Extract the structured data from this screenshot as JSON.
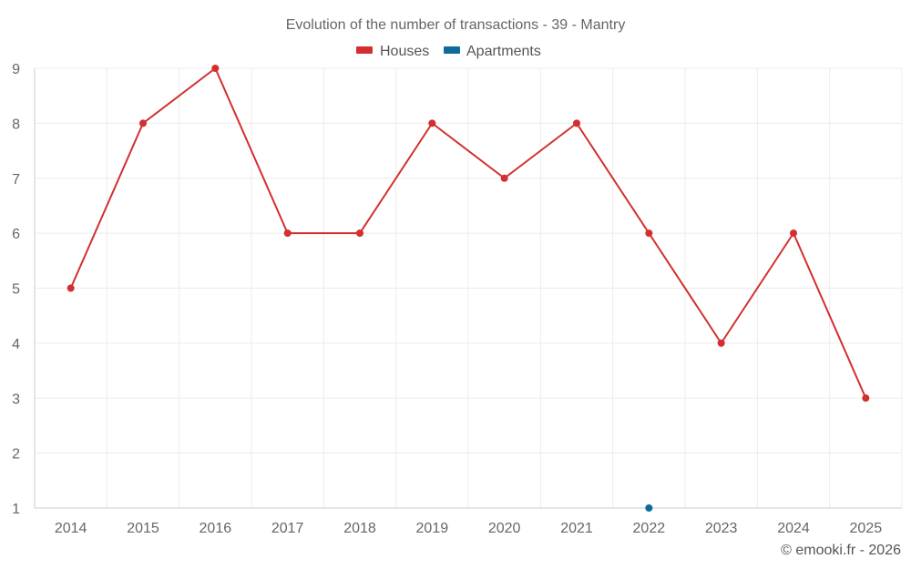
{
  "chart_data": {
    "type": "line",
    "title": "Evolution of the number of transactions - 39 - Mantry",
    "categories": [
      "2014",
      "2015",
      "2016",
      "2017",
      "2018",
      "2019",
      "2020",
      "2021",
      "2022",
      "2023",
      "2024",
      "2025"
    ],
    "series": [
      {
        "name": "Houses",
        "color": "#d32f2f",
        "values": [
          5,
          8,
          9,
          6,
          6,
          8,
          7,
          8,
          6,
          4,
          6,
          3
        ]
      },
      {
        "name": "Apartments",
        "color": "#0d6b9e",
        "values": [
          null,
          null,
          null,
          null,
          null,
          null,
          null,
          null,
          1,
          null,
          null,
          null
        ]
      }
    ],
    "ylim": [
      1,
      9
    ],
    "yticks": [
      "1",
      "2",
      "3",
      "4",
      "5",
      "6",
      "7",
      "8",
      "9"
    ],
    "grid": true,
    "legend": "top-center"
  },
  "credit": "© emooki.fr - 2026"
}
